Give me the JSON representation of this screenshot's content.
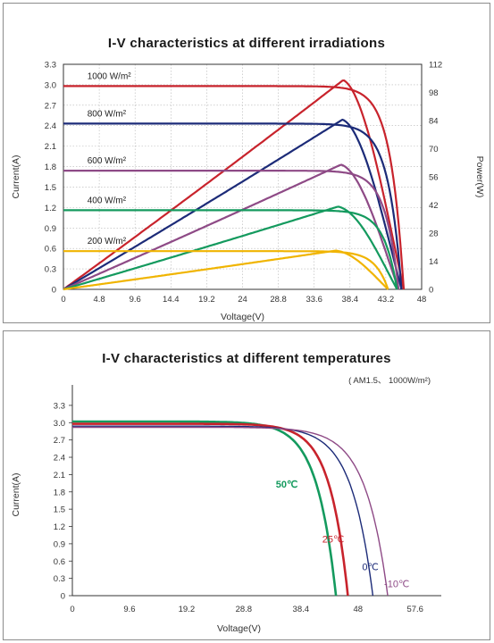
{
  "chart_data": [
    {
      "type": "line",
      "title": "I-V characteristics at different irradiations",
      "xlabel": "Voltage(V)",
      "ylabel": "Current(A)",
      "y2label": "Power(W)",
      "xlim": [
        0,
        48
      ],
      "ylim": [
        0,
        3.3
      ],
      "y2lim": [
        0,
        112
      ],
      "xticks": [
        "0",
        "4.8",
        "9.6",
        "14.4",
        "19.2",
        "24",
        "28.8",
        "33.6",
        "38.4",
        "43.2",
        "48"
      ],
      "yticks": [
        "0",
        "0.3",
        "0.6",
        "0.9",
        "1.2",
        "1.5",
        "1.8",
        "2.1",
        "2.4",
        "2.7",
        "3.0",
        "3.3"
      ],
      "y2ticks": [
        "0",
        "14",
        "28",
        "42",
        "56",
        "70",
        "84",
        "98",
        "112"
      ],
      "grid": true,
      "series": [
        {
          "name": "1000 W/m²",
          "color": "#c8232c",
          "isc": 2.98,
          "voc": 45.6,
          "vmp": 37.5,
          "imp": 2.78,
          "pmax": 104.2
        },
        {
          "name": "800 W/m²",
          "color": "#1c2b78",
          "isc": 2.43,
          "voc": 45.3,
          "vmp": 37.4,
          "imp": 2.26,
          "pmax": 84.5
        },
        {
          "name": "600 W/m²",
          "color": "#8e4a86",
          "isc": 1.74,
          "voc": 44.9,
          "vmp": 37.2,
          "imp": 1.67,
          "pmax": 62.1
        },
        {
          "name": "400 W/m²",
          "color": "#149a5e",
          "isc": 1.16,
          "voc": 44.7,
          "vmp": 36.8,
          "imp": 1.12,
          "pmax": 41.2
        },
        {
          "name": "200 W/m²",
          "color": "#f0b400",
          "isc": 0.56,
          "voc": 43.5,
          "vmp": 36.5,
          "imp": 0.53,
          "pmax": 19.3
        }
      ]
    },
    {
      "type": "line",
      "title": "I-V characteristics at different temperatures",
      "subtitle": "( AM1.5、 1000W/m²)",
      "xlabel": "Voltage(V)",
      "ylabel": "Current(A)",
      "xlim": [
        0,
        62
      ],
      "ylim": [
        0,
        3.5
      ],
      "xticks": [
        "0",
        "9.6",
        "19.2",
        "28.8",
        "38.4",
        "48",
        "57.6"
      ],
      "yticks": [
        "0",
        "0.3",
        "0.6",
        "0.9",
        "1.2",
        "1.5",
        "1.8",
        "2.1",
        "2.4",
        "2.7",
        "3.0",
        "3.3"
      ],
      "grid": false,
      "series": [
        {
          "name": "50℃",
          "color": "#149a5e",
          "isc": 3.02,
          "voc": 44.3,
          "knee": 34
        },
        {
          "name": "25℃",
          "color": "#c8232c",
          "isc": 2.98,
          "voc": 46.3,
          "knee": 36.5
        },
        {
          "name": "0℃",
          "color": "#1c2b78",
          "isc": 2.94,
          "voc": 50.5,
          "knee": 39
        },
        {
          "name": "-10℃",
          "color": "#8e4a86",
          "isc": 2.92,
          "voc": 53.0,
          "knee": 41
        }
      ]
    }
  ]
}
